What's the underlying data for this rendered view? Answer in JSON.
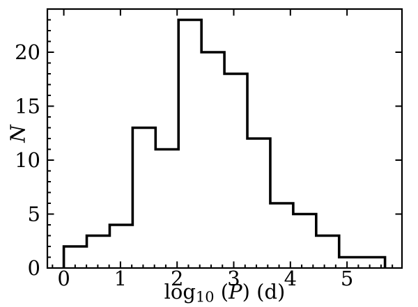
{
  "window": {
    "background": "#ffffff"
  },
  "chart_data": {
    "type": "histogram",
    "histtype": "step",
    "title": "",
    "xlabel": {
      "plain": "log10 (P) (d)",
      "word": "log",
      "sub": "10",
      "mid": " (",
      "var": "P",
      "end": ") (d)"
    },
    "ylabel": {
      "plain": "N",
      "var": "N"
    },
    "bin_edges": [
      0.0,
      0.405,
      0.81,
      1.215,
      1.62,
      2.025,
      2.43,
      2.835,
      3.24,
      3.645,
      4.05,
      4.455,
      4.86,
      5.265,
      5.67
    ],
    "counts": [
      2,
      3,
      4,
      13,
      11,
      23,
      20,
      18,
      12,
      6,
      5,
      3,
      1,
      1
    ],
    "xlim": [
      -0.29,
      5.97
    ],
    "ylim": [
      0,
      24
    ],
    "xticks": [
      0,
      1,
      2,
      3,
      4,
      5
    ],
    "xtick_labels": [
      "0",
      "1",
      "2",
      "3",
      "4",
      "5"
    ],
    "yticks": [
      0,
      5,
      10,
      15,
      20
    ],
    "ytick_labels": [
      "0",
      "5",
      "10",
      "15",
      "20"
    ],
    "xminor_step": 0.2,
    "yminor_step": 1,
    "tick_direction": "in",
    "grid": false,
    "legend": "none",
    "colors": {
      "line": "#000000",
      "text": "#000000",
      "background": "#ffffff"
    }
  }
}
